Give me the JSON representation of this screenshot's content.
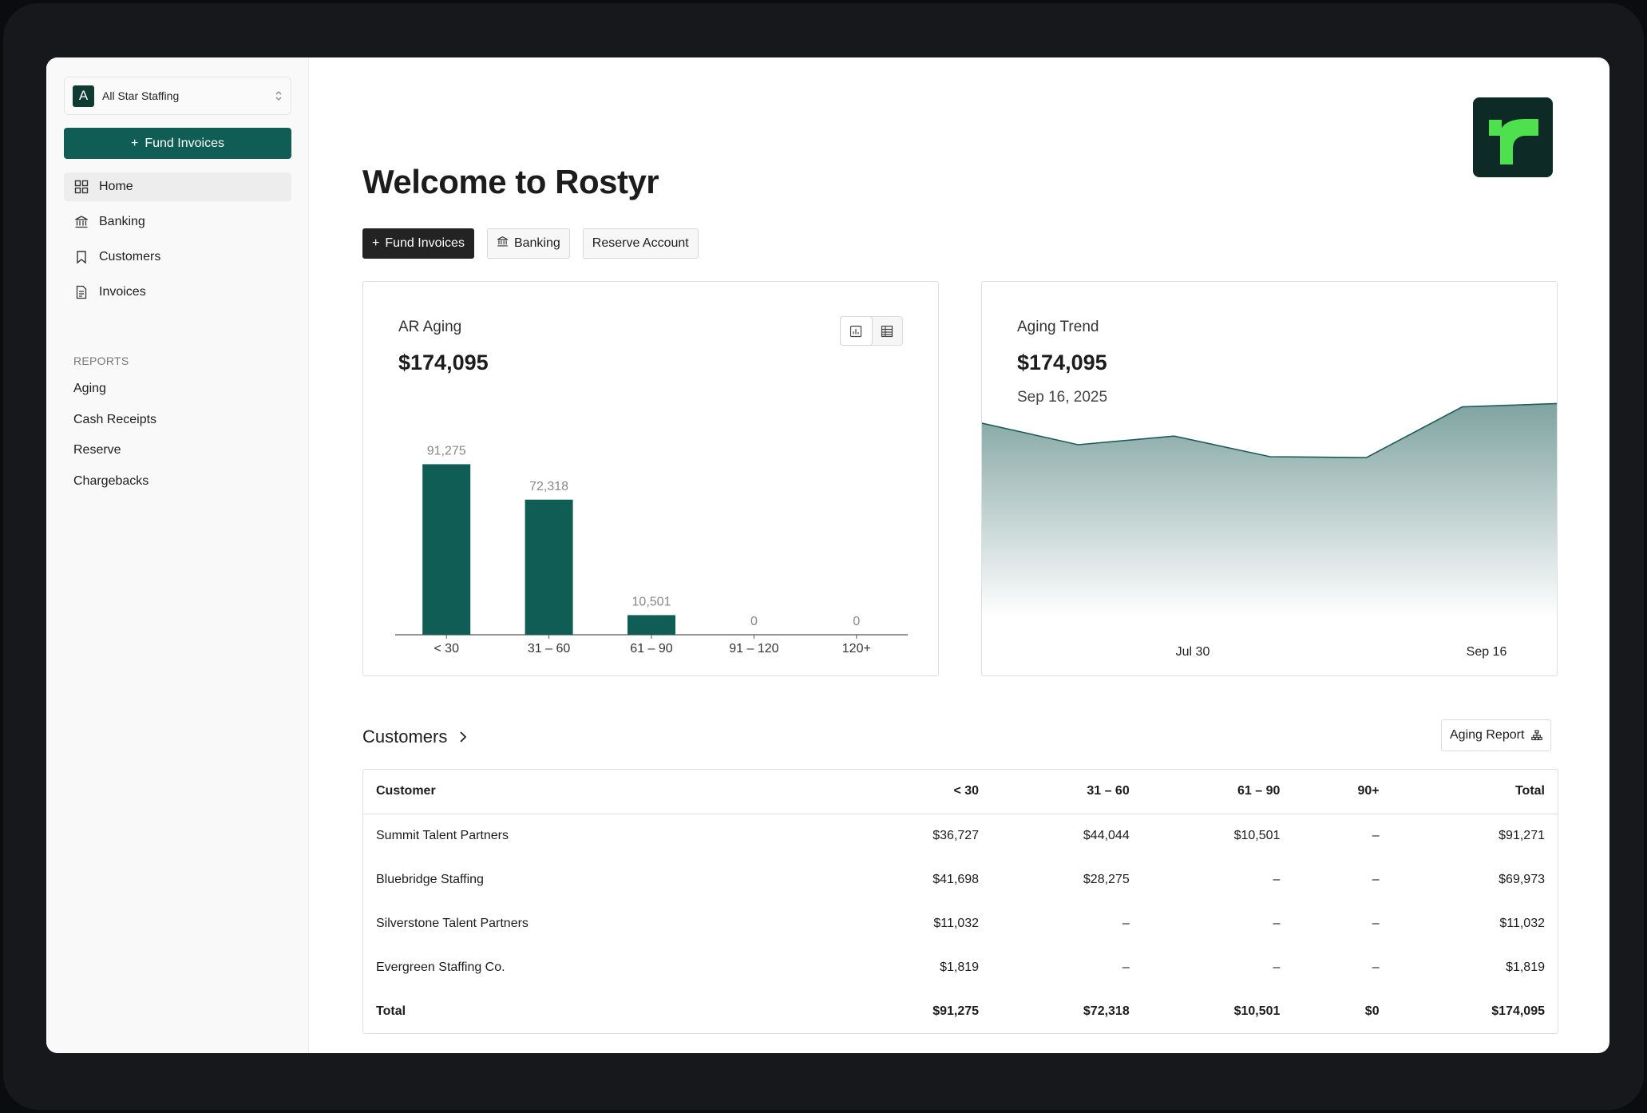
{
  "org": {
    "initial": "A",
    "name": "All Star Staffing"
  },
  "sidebar": {
    "fund_button": "Fund Invoices",
    "nav": [
      {
        "label": "Home",
        "icon": "grid-icon"
      },
      {
        "label": "Banking",
        "icon": "bank-icon"
      },
      {
        "label": "Customers",
        "icon": "bookmark-icon"
      },
      {
        "label": "Invoices",
        "icon": "document-icon"
      }
    ],
    "reports_title": "REPORTS",
    "reports": [
      "Aging",
      "Cash Receipts",
      "Reserve",
      "Chargebacks"
    ]
  },
  "main": {
    "title": "Welcome to Rostyr",
    "actions": {
      "fund": "Fund Invoices",
      "banking": "Banking",
      "reserve": "Reserve Account"
    }
  },
  "ar_card": {
    "title": "AR Aging",
    "amount": "$174,095"
  },
  "trend_card": {
    "title": "Aging Trend",
    "amount": "$174,095",
    "date": "Sep 16, 2025"
  },
  "chart_data": [
    {
      "type": "bar",
      "categories": [
        "< 30",
        "31 – 60",
        "61 – 90",
        "91 – 120",
        "120+"
      ],
      "values": [
        91275,
        72318,
        10501,
        0,
        0
      ],
      "value_labels": [
        "91,275",
        "72,318",
        "10,501",
        "0",
        "0"
      ],
      "title": "AR Aging",
      "ylim": [
        0,
        100000
      ],
      "color": "#0f5d55"
    },
    {
      "type": "area",
      "x_labels": [
        "Jul 30",
        "Sep 16"
      ],
      "values": [
        170500,
        166000,
        167800,
        163500,
        163300,
        173900,
        174600
      ],
      "title": "Aging Trend",
      "ylim": [
        130000,
        180000
      ],
      "color": "#1f5c57"
    }
  ],
  "customers": {
    "heading": "Customers",
    "report_button": "Aging Report",
    "columns": [
      "Customer",
      "< 30",
      "31 – 60",
      "61 – 90",
      "90+",
      "Total"
    ],
    "rows": [
      [
        "Summit Talent Partners",
        "$36,727",
        "$44,044",
        "$10,501",
        "–",
        "$91,271"
      ],
      [
        "Bluebridge Staffing",
        "$41,698",
        "$28,275",
        "–",
        "–",
        "$69,973"
      ],
      [
        "Silverstone Talent Partners",
        "$11,032",
        "–",
        "–",
        "–",
        "$11,032"
      ],
      [
        "Evergreen Staffing Co.",
        "$1,819",
        "–",
        "–",
        "–",
        "$1,819"
      ]
    ],
    "total": [
      "Total",
      "$91,275",
      "$72,318",
      "$10,501",
      "$0",
      "$174,095"
    ]
  }
}
